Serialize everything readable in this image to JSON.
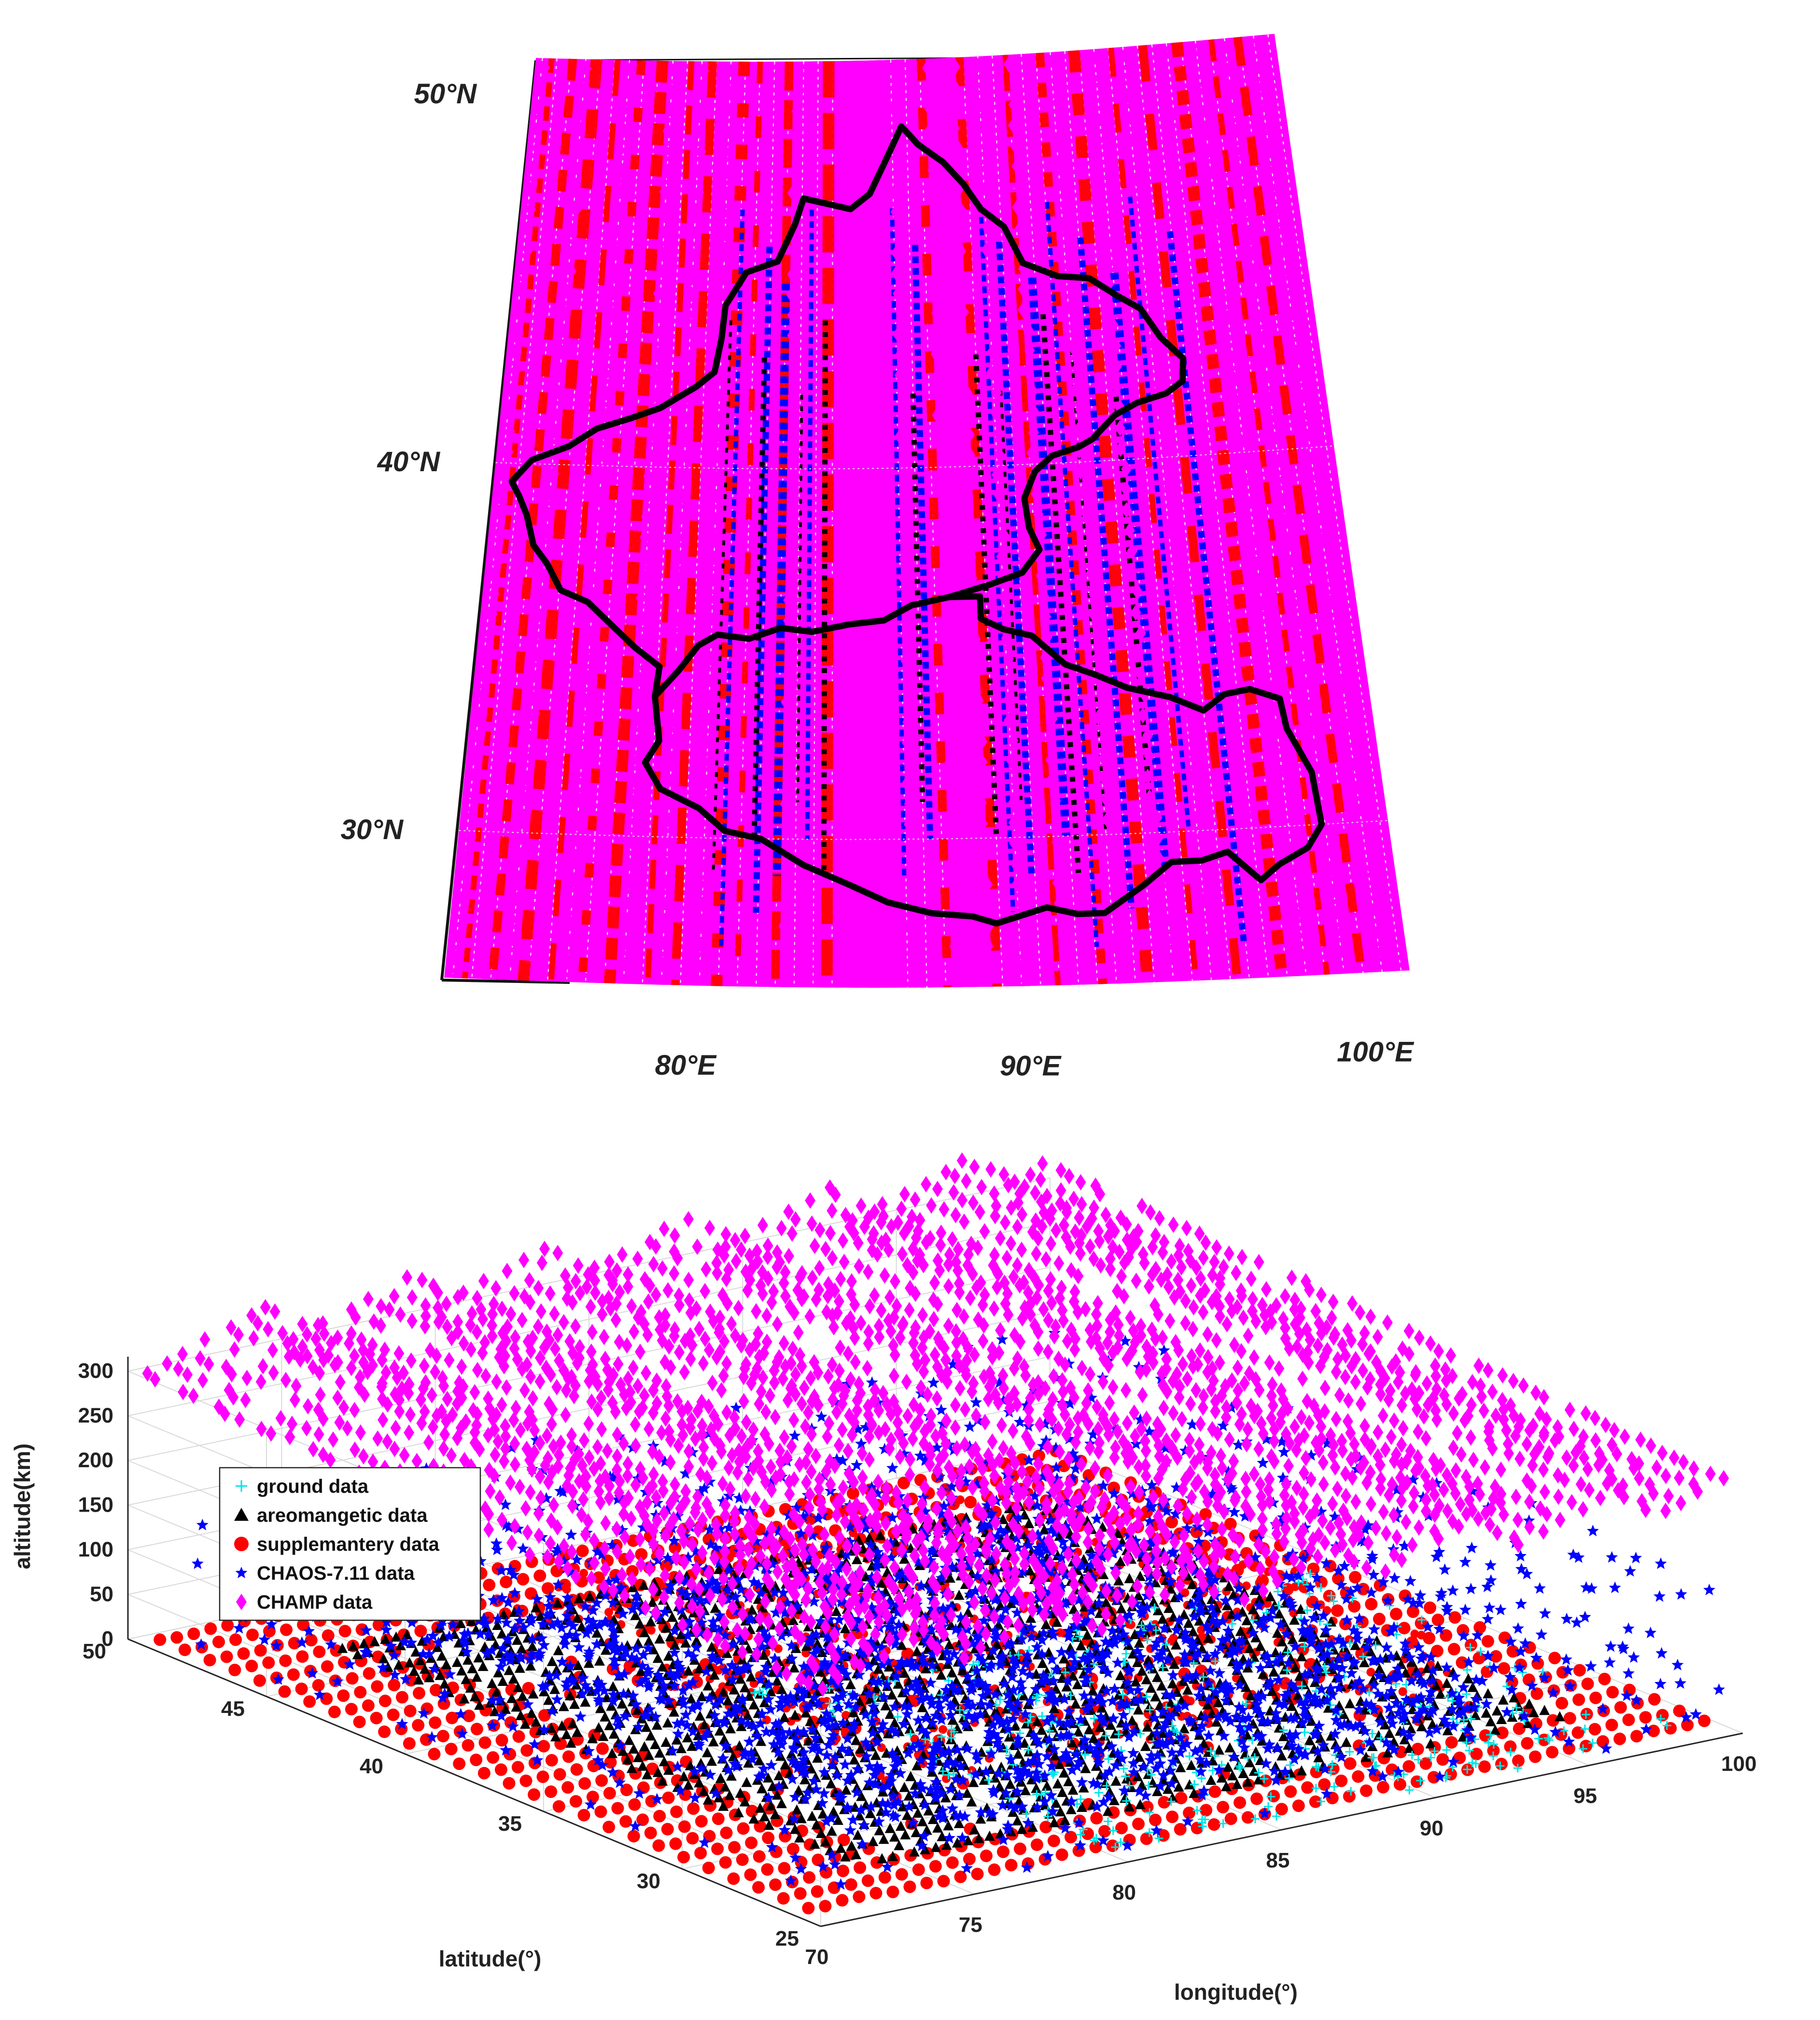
{
  "chart_data": [
    {
      "type": "scatter",
      "panel": "map",
      "lat_labels": [
        {
          "value": 50,
          "text": "50°N"
        },
        {
          "value": 40,
          "text": "40°N"
        },
        {
          "value": 30,
          "text": "30°N"
        }
      ],
      "lon_labels": [
        {
          "value": 80,
          "text": "80°E"
        },
        {
          "value": 90,
          "text": "90°E"
        },
        {
          "value": 100,
          "text": "100°E"
        }
      ],
      "lon_range": [
        73,
        101
      ],
      "lat_range": [
        26,
        51
      ],
      "series": [
        {
          "name": "supplemantery data",
          "color": "#ff0000",
          "marker": "circle"
        },
        {
          "name": "CHAOS-7.11 data",
          "color": "#0000ff",
          "marker": "star"
        },
        {
          "name": "areomangetic data",
          "color": "#000000",
          "marker": "triangle"
        },
        {
          "name": "CHAMP data",
          "color": "#ff00ff",
          "marker": "diamond"
        }
      ]
    },
    {
      "type": "scatter",
      "panel": "3d",
      "xlabel": "longitude(°)",
      "ylabel": "latitude(°)",
      "zlabel": "altitude(km)",
      "xlim": [
        70,
        100
      ],
      "ylim": [
        25,
        50
      ],
      "zlim": [
        0,
        300
      ],
      "xticks": [
        70,
        75,
        80,
        85,
        90,
        95,
        100
      ],
      "yticks": [
        25,
        30,
        35,
        40,
        45,
        50
      ],
      "zticks": [
        0,
        50,
        100,
        150,
        200,
        250,
        300
      ],
      "grid": true,
      "legend_position": "middle-left",
      "series": [
        {
          "name": "ground data",
          "color": "#00e5e5",
          "marker": "plus",
          "altitude_km": [
            0,
            0
          ]
        },
        {
          "name": "areomangetic data",
          "color": "#000000",
          "marker": "triangle",
          "altitude_km": [
            0,
            5
          ]
        },
        {
          "name": "supplemantery data",
          "color": "#ff0000",
          "marker": "circle",
          "altitude_km": [
            0,
            50
          ]
        },
        {
          "name": "CHAOS-7.11 data",
          "color": "#0000ff",
          "marker": "star",
          "altitude_km": [
            0,
            150
          ]
        },
        {
          "name": "CHAMP data",
          "color": "#ff00ff",
          "marker": "diamond",
          "altitude_km": [
            250,
            310
          ]
        }
      ]
    }
  ]
}
